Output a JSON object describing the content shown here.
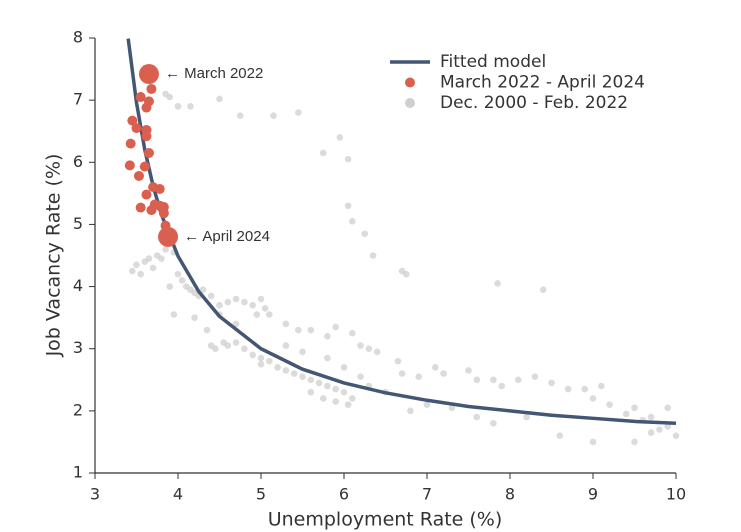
{
  "chart_data": {
    "type": "scatter",
    "xlabel": "Unemployment Rate (%)",
    "ylabel": "Job Vacancy Rate (%)",
    "xlim": [
      3,
      10
    ],
    "xticks": [
      3,
      4,
      5,
      6,
      7,
      8,
      9,
      10
    ],
    "ylim": [
      1,
      8
    ],
    "yticks": [
      1,
      2,
      3,
      4,
      5,
      6,
      7,
      8
    ],
    "grid": false,
    "legend": "upper right",
    "series": [
      {
        "name": "Fitted model",
        "type": "line",
        "color": "#435673",
        "x": [
          3.4,
          3.5,
          3.6,
          3.7,
          3.8,
          4,
          4.25,
          4.5,
          5,
          5.5,
          6,
          6.5,
          7,
          7.5,
          8,
          8.5,
          9,
          9.5,
          10
        ],
        "values": [
          7.99,
          6.96,
          6.2,
          5.62,
          5.16,
          4.49,
          3.92,
          3.52,
          3.0,
          2.67,
          2.45,
          2.29,
          2.17,
          2.07,
          2.0,
          1.93,
          1.88,
          1.83,
          1.8
        ]
      },
      {
        "name": "March 2022 - April 2024",
        "type": "scatter",
        "color": "#d9604f",
        "x": [
          3.65,
          3.68,
          3.55,
          3.65,
          3.62,
          3.45,
          3.5,
          3.62,
          3.62,
          3.43,
          3.65,
          3.42,
          3.6,
          3.53,
          3.7,
          3.78,
          3.62,
          3.72,
          3.78,
          3.55,
          3.68,
          3.83,
          3.83,
          3.85,
          3.88
        ],
        "values": [
          7.42,
          7.18,
          7.05,
          6.98,
          6.88,
          6.67,
          6.55,
          6.52,
          6.42,
          6.3,
          6.15,
          5.95,
          5.93,
          5.78,
          5.6,
          5.57,
          5.48,
          5.32,
          5.3,
          5.27,
          5.23,
          5.28,
          5.18,
          4.98,
          4.8
        ],
        "sizes": [
          10,
          5,
          5,
          5,
          5,
          5,
          5,
          5,
          5,
          5,
          5,
          5,
          5,
          5,
          5,
          5,
          5,
          5,
          5,
          5,
          5,
          5,
          5,
          5,
          10
        ]
      },
      {
        "name": "Dec. 2000 - Feb. 2022",
        "type": "scatter",
        "color": "#cfcfcf",
        "x": [
          3.85,
          3.9,
          4.0,
          4.15,
          4.5,
          4.75,
          5.15,
          5.45,
          5.75,
          5.95,
          6.05,
          6.05,
          6.1,
          6.25,
          6.35,
          6.7,
          6.75,
          7.85,
          8.4,
          3.45,
          3.5,
          3.55,
          3.6,
          3.65,
          3.7,
          3.75,
          3.8,
          3.85,
          3.95,
          4.0,
          4.05,
          4.1,
          4.15,
          4.2,
          4.25,
          4.3,
          4.4,
          4.5,
          4.6,
          4.7,
          4.8,
          4.9,
          5.0,
          5.05,
          5.1,
          4.95,
          5.3,
          5.45,
          5.6,
          5.8,
          5.9,
          6.1,
          6.2,
          6.3,
          6.4,
          3.95,
          4.2,
          4.35,
          4.4,
          4.45,
          4.55,
          4.6,
          4.7,
          4.8,
          4.9,
          5.0,
          5.0,
          5.1,
          5.2,
          5.3,
          5.4,
          5.5,
          5.6,
          5.7,
          5.8,
          5.9,
          6.0,
          6.1,
          5.6,
          5.75,
          5.9,
          6.05,
          6.65,
          6.7,
          6.9,
          7.1,
          7.2,
          7.5,
          7.6,
          7.8,
          7.9,
          8.1,
          8.3,
          8.5,
          8.7,
          8.9,
          9.1,
          9.0,
          9.2,
          9.4,
          9.5,
          9.6,
          9.7,
          9.8,
          9.9,
          10.0,
          9.5,
          9.7,
          9.9,
          7.0,
          7.3,
          7.6,
          7.8,
          8.2,
          8.6,
          9.0,
          6.3,
          6.5,
          6.8,
          6.2,
          6.0,
          5.8,
          5.5,
          5.3,
          4.5,
          4.7,
          3.9
        ],
        "values": [
          7.1,
          7.05,
          6.9,
          6.9,
          7.02,
          6.75,
          6.75,
          6.8,
          6.15,
          6.4,
          6.05,
          5.3,
          5.05,
          4.85,
          4.5,
          4.25,
          4.2,
          4.05,
          3.95,
          4.25,
          4.35,
          4.2,
          4.4,
          4.45,
          4.3,
          4.5,
          4.45,
          4.6,
          4.55,
          4.2,
          4.1,
          4.0,
          3.95,
          3.9,
          3.85,
          3.95,
          3.85,
          3.7,
          3.75,
          3.8,
          3.75,
          3.7,
          3.8,
          3.65,
          3.55,
          3.55,
          3.4,
          3.3,
          3.3,
          3.2,
          3.35,
          3.25,
          3.05,
          3.0,
          2.95,
          3.55,
          3.5,
          3.3,
          3.05,
          3.0,
          3.1,
          3.05,
          3.1,
          3.0,
          2.9,
          2.85,
          2.75,
          2.8,
          2.7,
          2.65,
          2.6,
          2.55,
          2.5,
          2.45,
          2.4,
          2.35,
          2.3,
          2.2,
          2.3,
          2.2,
          2.15,
          2.1,
          2.8,
          2.6,
          2.55,
          2.7,
          2.6,
          2.65,
          2.5,
          2.5,
          2.4,
          2.5,
          2.55,
          2.45,
          2.35,
          2.35,
          2.4,
          2.2,
          2.1,
          1.95,
          2.05,
          1.85,
          1.9,
          1.7,
          1.75,
          1.6,
          1.5,
          1.65,
          2.05,
          2.1,
          2.05,
          1.9,
          1.8,
          1.9,
          1.6,
          1.5,
          2.4,
          2.3,
          2.0,
          2.55,
          2.7,
          2.85,
          2.95,
          3.05,
          3.55,
          3.4,
          4.0
        ]
      }
    ],
    "annotations": [
      {
        "text": "← March 2022",
        "x": 3.65,
        "y": 7.42
      },
      {
        "text": "← April 2024",
        "x": 3.88,
        "y": 4.8
      }
    ]
  }
}
